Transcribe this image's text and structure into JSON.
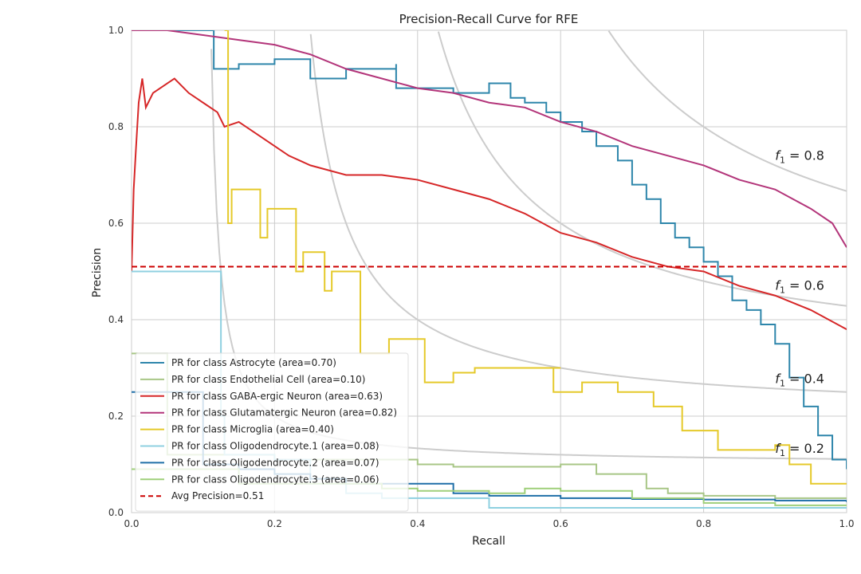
{
  "chart_data": {
    "type": "line",
    "title": "Precision-Recall Curve for RFE",
    "xlabel": "Recall",
    "ylabel": "Precision",
    "xlim": [
      0,
      1
    ],
    "ylim": [
      0,
      1
    ],
    "grid": true,
    "legend_position": "lower-left",
    "x_ticks": [
      "0.0",
      "0.2",
      "0.4",
      "0.6",
      "0.8",
      "1.0"
    ],
    "y_ticks": [
      "0.0",
      "0.2",
      "0.4",
      "0.6",
      "0.8",
      "1.0"
    ],
    "iso_f1": [
      {
        "f1": 0.2,
        "prefix": "f",
        "sub": "1",
        "text": " = 0.2"
      },
      {
        "f1": 0.4,
        "prefix": "f",
        "sub": "1",
        "text": " = 0.4"
      },
      {
        "f1": 0.6,
        "prefix": "f",
        "sub": "1",
        "text": " = 0.6"
      },
      {
        "f1": 0.8,
        "prefix": "f",
        "sub": "1",
        "text": " = 0.8"
      }
    ],
    "series": [
      {
        "name": "PR for class Astrocyte (area=0.70)",
        "color": "#2e86ab",
        "step": true,
        "points": [
          [
            0,
            1.0
          ],
          [
            0.11,
            1.0
          ],
          [
            0.115,
            0.92
          ],
          [
            0.15,
            0.93
          ],
          [
            0.2,
            0.94
          ],
          [
            0.25,
            0.9
          ],
          [
            0.3,
            0.92
          ],
          [
            0.37,
            0.93
          ],
          [
            0.37,
            0.88
          ],
          [
            0.4,
            0.88
          ],
          [
            0.45,
            0.87
          ],
          [
            0.5,
            0.89
          ],
          [
            0.53,
            0.86
          ],
          [
            0.55,
            0.85
          ],
          [
            0.58,
            0.83
          ],
          [
            0.6,
            0.81
          ],
          [
            0.63,
            0.79
          ],
          [
            0.65,
            0.76
          ],
          [
            0.68,
            0.73
          ],
          [
            0.7,
            0.68
          ],
          [
            0.72,
            0.65
          ],
          [
            0.74,
            0.6
          ],
          [
            0.76,
            0.57
          ],
          [
            0.78,
            0.55
          ],
          [
            0.8,
            0.52
          ],
          [
            0.82,
            0.49
          ],
          [
            0.84,
            0.44
          ],
          [
            0.86,
            0.42
          ],
          [
            0.88,
            0.39
          ],
          [
            0.9,
            0.35
          ],
          [
            0.92,
            0.28
          ],
          [
            0.94,
            0.22
          ],
          [
            0.96,
            0.16
          ],
          [
            0.98,
            0.11
          ],
          [
            1.0,
            0.09
          ]
        ]
      },
      {
        "name": "PR for class Endothelial Cell (area=0.10)",
        "color": "#a8c686",
        "step": true,
        "points": [
          [
            0,
            0.33
          ],
          [
            0.05,
            0.33
          ],
          [
            0.05,
            0.12
          ],
          [
            0.2,
            0.12
          ],
          [
            0.2,
            0.11
          ],
          [
            0.3,
            0.11
          ],
          [
            0.4,
            0.1
          ],
          [
            0.45,
            0.095
          ],
          [
            0.55,
            0.095
          ],
          [
            0.6,
            0.1
          ],
          [
            0.65,
            0.1
          ],
          [
            0.65,
            0.08
          ],
          [
            0.7,
            0.08
          ],
          [
            0.72,
            0.05
          ],
          [
            0.75,
            0.04
          ],
          [
            0.8,
            0.035
          ],
          [
            0.85,
            0.035
          ],
          [
            0.9,
            0.03
          ],
          [
            1.0,
            0.03
          ]
        ]
      },
      {
        "name": "PR for class GABA-ergic Neuron (area=0.63)",
        "color": "#d62728",
        "step": false,
        "points": [
          [
            0,
            0.5
          ],
          [
            0.003,
            0.67
          ],
          [
            0.006,
            0.75
          ],
          [
            0.01,
            0.85
          ],
          [
            0.015,
            0.9
          ],
          [
            0.02,
            0.84
          ],
          [
            0.03,
            0.87
          ],
          [
            0.05,
            0.89
          ],
          [
            0.06,
            0.9
          ],
          [
            0.08,
            0.87
          ],
          [
            0.09,
            0.86
          ],
          [
            0.1,
            0.85
          ],
          [
            0.12,
            0.83
          ],
          [
            0.13,
            0.8
          ],
          [
            0.15,
            0.81
          ],
          [
            0.18,
            0.78
          ],
          [
            0.2,
            0.76
          ],
          [
            0.22,
            0.74
          ],
          [
            0.25,
            0.72
          ],
          [
            0.3,
            0.7
          ],
          [
            0.35,
            0.7
          ],
          [
            0.4,
            0.69
          ],
          [
            0.45,
            0.67
          ],
          [
            0.5,
            0.65
          ],
          [
            0.55,
            0.62
          ],
          [
            0.6,
            0.58
          ],
          [
            0.65,
            0.56
          ],
          [
            0.7,
            0.53
          ],
          [
            0.75,
            0.51
          ],
          [
            0.8,
            0.5
          ],
          [
            0.85,
            0.47
          ],
          [
            0.9,
            0.45
          ],
          [
            0.95,
            0.42
          ],
          [
            1.0,
            0.38
          ]
        ]
      },
      {
        "name": "PR for class Glutamatergic Neuron (area=0.82)",
        "color": "#b3357a",
        "step": false,
        "points": [
          [
            0,
            1.0
          ],
          [
            0.05,
            1.0
          ],
          [
            0.1,
            0.99
          ],
          [
            0.15,
            0.98
          ],
          [
            0.2,
            0.97
          ],
          [
            0.25,
            0.95
          ],
          [
            0.3,
            0.92
          ],
          [
            0.35,
            0.9
          ],
          [
            0.4,
            0.88
          ],
          [
            0.45,
            0.87
          ],
          [
            0.5,
            0.85
          ],
          [
            0.55,
            0.84
          ],
          [
            0.6,
            0.81
          ],
          [
            0.65,
            0.79
          ],
          [
            0.7,
            0.76
          ],
          [
            0.75,
            0.74
          ],
          [
            0.8,
            0.72
          ],
          [
            0.85,
            0.69
          ],
          [
            0.9,
            0.67
          ],
          [
            0.95,
            0.63
          ],
          [
            0.98,
            0.6
          ],
          [
            1.0,
            0.55
          ]
        ]
      },
      {
        "name": "PR for class Microglia (area=0.40)",
        "color": "#e5c92a",
        "step": true,
        "points": [
          [
            0.13,
            1.0
          ],
          [
            0.135,
            1.0
          ],
          [
            0.135,
            0.6
          ],
          [
            0.14,
            0.67
          ],
          [
            0.18,
            0.67
          ],
          [
            0.18,
            0.57
          ],
          [
            0.19,
            0.63
          ],
          [
            0.23,
            0.63
          ],
          [
            0.23,
            0.5
          ],
          [
            0.24,
            0.54
          ],
          [
            0.27,
            0.54
          ],
          [
            0.27,
            0.46
          ],
          [
            0.28,
            0.5
          ],
          [
            0.32,
            0.5
          ],
          [
            0.32,
            0.33
          ],
          [
            0.36,
            0.36
          ],
          [
            0.4,
            0.36
          ],
          [
            0.41,
            0.27
          ],
          [
            0.45,
            0.29
          ],
          [
            0.48,
            0.3
          ],
          [
            0.53,
            0.3
          ],
          [
            0.55,
            0.3
          ],
          [
            0.6,
            0.3
          ],
          [
            0.59,
            0.25
          ],
          [
            0.63,
            0.27
          ],
          [
            0.68,
            0.25
          ],
          [
            0.73,
            0.25
          ],
          [
            0.73,
            0.22
          ],
          [
            0.77,
            0.22
          ],
          [
            0.77,
            0.17
          ],
          [
            0.82,
            0.17
          ],
          [
            0.82,
            0.13
          ],
          [
            0.9,
            0.14
          ],
          [
            0.92,
            0.1
          ],
          [
            0.95,
            0.1
          ],
          [
            0.95,
            0.06
          ],
          [
            1.0,
            0.06
          ]
        ]
      },
      {
        "name": "PR for class Oligodendrocyte.1 (area=0.08)",
        "color": "#8fd0e0",
        "step": true,
        "points": [
          [
            0,
            0.5
          ],
          [
            0.125,
            0.5
          ],
          [
            0.125,
            0.2
          ],
          [
            0.13,
            0.12
          ],
          [
            0.2,
            0.11
          ],
          [
            0.25,
            0.06
          ],
          [
            0.3,
            0.04
          ],
          [
            0.35,
            0.03
          ],
          [
            0.5,
            0.03
          ],
          [
            0.5,
            0.01
          ],
          [
            0.6,
            0.01
          ],
          [
            0.8,
            0.01
          ],
          [
            1.0,
            0.01
          ]
        ]
      },
      {
        "name": "PR for class Oligodendrocyte.2 (area=0.07)",
        "color": "#1f6fa8",
        "step": true,
        "points": [
          [
            0,
            0.25
          ],
          [
            0.1,
            0.25
          ],
          [
            0.1,
            0.1
          ],
          [
            0.15,
            0.09
          ],
          [
            0.2,
            0.08
          ],
          [
            0.25,
            0.07
          ],
          [
            0.3,
            0.06
          ],
          [
            0.4,
            0.06
          ],
          [
            0.45,
            0.04
          ],
          [
            0.5,
            0.035
          ],
          [
            0.6,
            0.03
          ],
          [
            0.7,
            0.028
          ],
          [
            0.8,
            0.027
          ],
          [
            0.9,
            0.025
          ],
          [
            1.0,
            0.022
          ]
        ]
      },
      {
        "name": "PR for class Oligodendrocyte.3 (area=0.06)",
        "color": "#9fcf7a",
        "step": true,
        "points": [
          [
            0,
            0.09
          ],
          [
            0.1,
            0.09
          ],
          [
            0.15,
            0.06
          ],
          [
            0.25,
            0.06
          ],
          [
            0.35,
            0.05
          ],
          [
            0.4,
            0.045
          ],
          [
            0.5,
            0.04
          ],
          [
            0.55,
            0.05
          ],
          [
            0.6,
            0.045
          ],
          [
            0.7,
            0.03
          ],
          [
            0.8,
            0.02
          ],
          [
            0.9,
            0.015
          ],
          [
            1.0,
            0.015
          ]
        ]
      }
    ],
    "avg_precision": {
      "name": "Avg Precision=0.51",
      "value": 0.51,
      "color": "#cc0000",
      "dashed": true
    }
  }
}
